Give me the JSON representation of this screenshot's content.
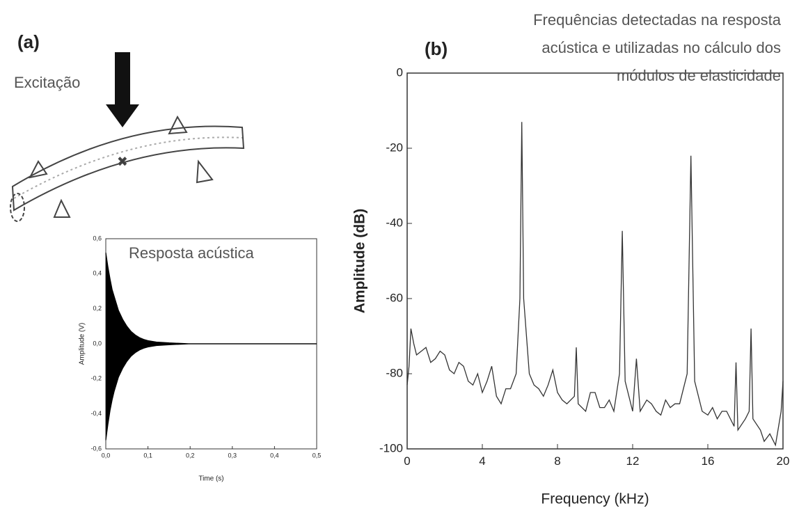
{
  "diagram": {
    "label": "Excitação"
  },
  "chart_data": [
    {
      "type": "area",
      "panel": "(a)",
      "annotation": "Resposta acústica",
      "x_label": "Time (s)",
      "y_label": "Amplitude (V)",
      "x": [
        0,
        0.005,
        0.01,
        0.015,
        0.02,
        0.03,
        0.04,
        0.05,
        0.06,
        0.07,
        0.08,
        0.09,
        0.1,
        0.12,
        0.15,
        0.2,
        0.3,
        0.4,
        0.5
      ],
      "series": [
        {
          "color": "#000000",
          "values": [
            0.52,
            0.44,
            0.37,
            0.31,
            0.27,
            0.19,
            0.14,
            0.1,
            0.07,
            0.05,
            0.035,
            0.025,
            0.018,
            0.01,
            0.005,
            0,
            0,
            0,
            0
          ]
        },
        {
          "color": "#000000",
          "values": [
            -0.55,
            -0.46,
            -0.38,
            -0.32,
            -0.27,
            -0.19,
            -0.14,
            -0.1,
            -0.07,
            -0.05,
            -0.035,
            -0.025,
            -0.018,
            -0.01,
            -0.005,
            0,
            0,
            0,
            0
          ]
        }
      ],
      "xlim": [
        0,
        0.5
      ],
      "xticks": [
        {
          "value": 0,
          "label": "0,0"
        },
        {
          "value": 0.1,
          "label": "0,1"
        },
        {
          "value": 0.2,
          "label": "0,2"
        },
        {
          "value": 0.3,
          "label": "0,3"
        },
        {
          "value": 0.4,
          "label": "0,4"
        },
        {
          "value": 0.5,
          "label": "0,5"
        }
      ],
      "ylim": [
        -0.6,
        0.6
      ],
      "yticks": [
        {
          "value": -0.6,
          "label": "-0,6"
        },
        {
          "value": -0.4,
          "label": "-0,4"
        },
        {
          "value": -0.2,
          "label": "-0,2"
        },
        {
          "value": 0,
          "label": "0,0"
        },
        {
          "value": 0.2,
          "label": "0,2"
        },
        {
          "value": 0.4,
          "label": "0,4"
        },
        {
          "value": 0.6,
          "label": "0,6"
        }
      ]
    },
    {
      "type": "line",
      "panel": "(b)",
      "annotation": [
        "Frequências detectadas na resposta",
        "acústica  e utilizadas no cálculo dos",
        "módulos de elasticidade"
      ],
      "x_label": "Frequency (kHz)",
      "y_label": "Amplitude (dB)",
      "x": [
        0,
        0.1,
        0.2,
        0.35,
        0.5,
        0.75,
        1,
        1.25,
        1.5,
        1.75,
        2,
        2.25,
        2.5,
        2.75,
        3,
        3.25,
        3.5,
        3.75,
        4,
        4.25,
        4.5,
        4.75,
        5,
        5.25,
        5.5,
        5.8,
        6.0,
        6.1,
        6.2,
        6.5,
        6.75,
        7,
        7.25,
        7.5,
        7.75,
        8,
        8.25,
        8.5,
        8.9,
        9.0,
        9.1,
        9.5,
        9.75,
        10,
        10.25,
        10.5,
        10.75,
        11,
        11.3,
        11.45,
        11.6,
        12,
        12.2,
        12.4,
        12.75,
        13,
        13.25,
        13.5,
        13.75,
        14,
        14.25,
        14.5,
        14.9,
        15.1,
        15.3,
        15.7,
        16,
        16.25,
        16.5,
        16.75,
        17,
        17.4,
        17.5,
        17.6,
        18,
        18.2,
        18.3,
        18.4,
        18.8,
        19,
        19.3,
        19.6,
        19.9,
        20
      ],
      "series": [
        {
          "color": "#333333",
          "values": [
            -83,
            -78,
            -68,
            -72,
            -75,
            -74,
            -73,
            -77,
            -76,
            -74,
            -75,
            -79,
            -80,
            -77,
            -78,
            -82,
            -83,
            -80,
            -85,
            -82,
            -78,
            -86,
            -88,
            -84,
            -84,
            -80,
            -60,
            -13,
            -60,
            -80,
            -83,
            -84,
            -86,
            -83,
            -79,
            -85,
            -87,
            -88,
            -86,
            -73,
            -88,
            -90,
            -85,
            -85,
            -89,
            -89,
            -87,
            -90,
            -80,
            -42,
            -82,
            -90,
            -76,
            -90,
            -87,
            -88,
            -90,
            -91,
            -87,
            -89,
            -88,
            -88,
            -80,
            -22,
            -82,
            -90,
            -91,
            -89,
            -92,
            -90,
            -90,
            -94,
            -77,
            -95,
            -92,
            -90,
            -68,
            -92,
            -95,
            -98,
            -96,
            -99,
            -90,
            -82
          ]
        }
      ],
      "xlim": [
        0,
        20
      ],
      "xticks": [
        0,
        4,
        8,
        12,
        16,
        20
      ],
      "ylim": [
        -100,
        0
      ],
      "yticks": [
        -100,
        -80,
        -60,
        -40,
        -20,
        0
      ]
    }
  ]
}
